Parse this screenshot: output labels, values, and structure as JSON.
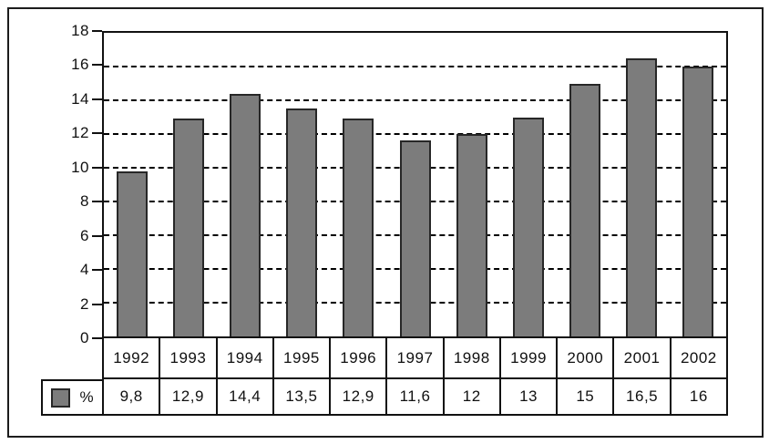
{
  "chart_data": {
    "type": "bar",
    "title": "",
    "xlabel": "",
    "ylabel": "",
    "categories": [
      "1992",
      "1993",
      "1994",
      "1995",
      "1996",
      "1997",
      "1998",
      "1999",
      "2000",
      "2001",
      "2002"
    ],
    "values": [
      9.8,
      12.9,
      14.4,
      13.5,
      12.9,
      11.6,
      12,
      13,
      15,
      16.5,
      16
    ],
    "value_labels": [
      "9,8",
      "12,9",
      "14,4",
      "13,5",
      "12,9",
      "11,6",
      "12",
      "13",
      "15",
      "16,5",
      "16"
    ],
    "legend_label": "%",
    "ylim": [
      0,
      18
    ],
    "y_ticks": [
      "0",
      "2",
      "4",
      "6",
      "8",
      "10",
      "12",
      "14",
      "16",
      "18"
    ],
    "gridlines": "horizontal-dashed",
    "legend_position": "bottom-left-table-cell",
    "bar_color": "#7c7c7c",
    "bar_border_color": "#272727",
    "line_color": "#111111"
  }
}
